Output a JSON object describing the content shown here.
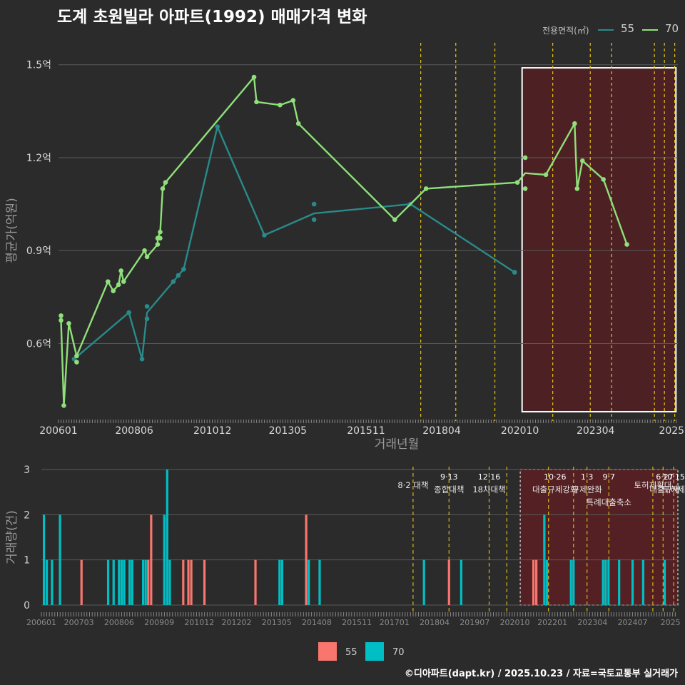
{
  "title": "도계 초원빌라 아파트(1992) 매매가격 변화",
  "footer": "©디아파트(dapt.kr) / 2025.10.23 / 자료=국토교통부 실거래가",
  "colors": {
    "bg": "#2b2b2b",
    "s55_line": "#2a8a8a",
    "s70_line": "#8fe07a",
    "bar55": "#f8766d",
    "bar70": "#00bfc4",
    "policy": "#e6c619",
    "highlight": "#5a1f22"
  },
  "legend_top": {
    "title": "전용면적(㎡)",
    "items": [
      {
        "label": "55",
        "color": "#2a8a8a"
      },
      {
        "label": "70",
        "color": "#8fe07a"
      }
    ]
  },
  "legend_bottom": {
    "items": [
      {
        "label": "55",
        "color": "#f8766d"
      },
      {
        "label": "70",
        "color": "#00bfc4"
      }
    ]
  },
  "chart_data": [
    {
      "type": "line",
      "title": "도계 초원빌라 아파트(1992) 매매가격 변화",
      "xlabel": "거래년월",
      "ylabel": "평균가(억원)",
      "xlim": [
        2006.0,
        2025.8
      ],
      "ylim": [
        0.35,
        1.58
      ],
      "y_ticks": [
        {
          "v": 0.6,
          "label": "0.6억"
        },
        {
          "v": 0.9,
          "label": "0.9억"
        },
        {
          "v": 1.2,
          "label": "1.2억"
        },
        {
          "v": 1.5,
          "label": "1.5억"
        }
      ],
      "x_ticks": [
        {
          "v": 2006.0,
          "label": "200601"
        },
        {
          "v": 2008.42,
          "label": "200806"
        },
        {
          "v": 2010.92,
          "label": "201012"
        },
        {
          "v": 2013.33,
          "label": "201305"
        },
        {
          "v": 2015.83,
          "label": "201511"
        },
        {
          "v": 2018.25,
          "label": "201804"
        },
        {
          "v": 2020.75,
          "label": "202010"
        },
        {
          "v": 2023.17,
          "label": "202304"
        },
        {
          "v": 2025.6,
          "label": "2025"
        }
      ],
      "highlight_range": [
        2020.82,
        2025.83
      ],
      "policy_lines": [
        2017.58,
        2018.7,
        2019.95,
        2021.8,
        2023.0,
        2023.68,
        2025.05,
        2025.37,
        2025.7
      ],
      "series": [
        {
          "name": "55",
          "line": [
            [
              2006.5,
              0.55
            ],
            [
              2008.25,
              0.7
            ],
            [
              2008.67,
              0.55
            ],
            [
              2008.83,
              0.7
            ],
            [
              2009.67,
              0.8
            ],
            [
              2009.83,
              0.82
            ],
            [
              2010.0,
              0.84
            ],
            [
              2011.08,
              1.3
            ],
            [
              2012.58,
              0.95
            ],
            [
              2014.17,
              1.02
            ],
            [
              2017.25,
              1.05
            ],
            [
              2020.58,
              0.83
            ]
          ],
          "points": [
            [
              2006.5,
              0.55
            ],
            [
              2008.25,
              0.7
            ],
            [
              2008.67,
              0.55
            ],
            [
              2008.83,
              0.72
            ],
            [
              2008.83,
              0.68
            ],
            [
              2009.67,
              0.8
            ],
            [
              2009.83,
              0.82
            ],
            [
              2010.0,
              0.84
            ],
            [
              2011.08,
              1.3
            ],
            [
              2012.58,
              0.95
            ],
            [
              2014.17,
              1.05
            ],
            [
              2014.17,
              1.0
            ],
            [
              2017.25,
              1.05
            ],
            [
              2020.58,
              0.83
            ]
          ]
        },
        {
          "name": "70",
          "line": [
            [
              2006.08,
              0.69
            ],
            [
              2006.08,
              0.675
            ],
            [
              2006.17,
              0.4
            ],
            [
              2006.33,
              0.665
            ],
            [
              2006.58,
              0.56
            ],
            [
              2007.58,
              0.8
            ],
            [
              2007.75,
              0.77
            ],
            [
              2007.92,
              0.79
            ],
            [
              2008.0,
              0.835
            ],
            [
              2008.08,
              0.8
            ],
            [
              2008.75,
              0.9
            ],
            [
              2008.83,
              0.88
            ],
            [
              2009.17,
              0.92
            ],
            [
              2009.17,
              0.94
            ],
            [
              2009.25,
              0.96
            ],
            [
              2009.33,
              1.1
            ],
            [
              2009.42,
              1.12
            ],
            [
              2012.25,
              1.46
            ],
            [
              2012.33,
              1.38
            ],
            [
              2013.08,
              1.37
            ],
            [
              2013.5,
              1.385
            ],
            [
              2013.67,
              1.31
            ],
            [
              2016.75,
              1.0
            ],
            [
              2017.25,
              1.05
            ],
            [
              2017.75,
              1.1
            ],
            [
              2020.67,
              1.12
            ],
            [
              2020.92,
              1.15
            ],
            [
              2021.58,
              1.145
            ],
            [
              2022.5,
              1.31
            ],
            [
              2022.58,
              1.1
            ],
            [
              2022.75,
              1.19
            ],
            [
              2023.42,
              1.13
            ],
            [
              2024.17,
              0.92
            ]
          ],
          "points": [
            [
              2006.08,
              0.69
            ],
            [
              2006.08,
              0.675
            ],
            [
              2006.17,
              0.4
            ],
            [
              2006.33,
              0.665
            ],
            [
              2006.58,
              0.56
            ],
            [
              2006.58,
              0.54
            ],
            [
              2007.58,
              0.8
            ],
            [
              2007.75,
              0.77
            ],
            [
              2007.92,
              0.79
            ],
            [
              2008.0,
              0.835
            ],
            [
              2008.08,
              0.8
            ],
            [
              2008.75,
              0.9
            ],
            [
              2008.83,
              0.88
            ],
            [
              2009.17,
              0.92
            ],
            [
              2009.17,
              0.94
            ],
            [
              2009.25,
              0.96
            ],
            [
              2009.25,
              0.94
            ],
            [
              2009.33,
              1.1
            ],
            [
              2009.42,
              1.12
            ],
            [
              2012.25,
              1.46
            ],
            [
              2012.33,
              1.38
            ],
            [
              2013.08,
              1.37
            ],
            [
              2013.5,
              1.385
            ],
            [
              2013.67,
              1.31
            ],
            [
              2016.75,
              1.0
            ],
            [
              2017.75,
              1.1
            ],
            [
              2020.67,
              1.12
            ],
            [
              2020.92,
              1.2
            ],
            [
              2020.92,
              1.1
            ],
            [
              2021.58,
              1.145
            ],
            [
              2022.5,
              1.31
            ],
            [
              2022.58,
              1.1
            ],
            [
              2022.75,
              1.19
            ],
            [
              2023.42,
              1.13
            ],
            [
              2024.17,
              0.92
            ]
          ]
        }
      ]
    },
    {
      "type": "bar",
      "ylabel": "거래량(건)",
      "xlim": [
        2006.0,
        2025.83
      ],
      "ylim": [
        0,
        3
      ],
      "y_ticks": [
        0,
        1,
        2,
        3
      ],
      "x_ticks": [
        {
          "v": 2006.0,
          "label": "200601"
        },
        {
          "v": 2007.17,
          "label": "200703"
        },
        {
          "v": 2008.42,
          "label": "200806"
        },
        {
          "v": 2009.67,
          "label": "200909"
        },
        {
          "v": 2010.92,
          "label": "201012"
        },
        {
          "v": 2012.08,
          "label": "201202"
        },
        {
          "v": 2013.33,
          "label": "201305"
        },
        {
          "v": 2014.58,
          "label": "201408"
        },
        {
          "v": 2015.83,
          "label": "201511"
        },
        {
          "v": 2017.0,
          "label": "201701"
        },
        {
          "v": 2018.25,
          "label": "201804"
        },
        {
          "v": 2019.5,
          "label": "201907"
        },
        {
          "v": 2020.75,
          "label": "202010"
        },
        {
          "v": 2021.92,
          "label": "202201"
        },
        {
          "v": 2023.17,
          "label": "202304"
        },
        {
          "v": 2024.42,
          "label": "202407"
        },
        {
          "v": 2025.6,
          "label": "2025"
        }
      ],
      "highlight_range": [
        2020.92,
        2025.83
      ],
      "policy_lines": [
        2017.58,
        2018.7,
        2019.95,
        2020.5,
        2021.8,
        2022.58,
        2023.0,
        2023.68,
        2025.05,
        2025.37,
        2025.7
      ],
      "policy_labels": [
        {
          "v": 2017.58,
          "date": "",
          "text": "8·2 대책"
        },
        {
          "v": 2018.7,
          "date": "9·13",
          "text": "종합대책"
        },
        {
          "v": 2019.95,
          "date": "12·16",
          "text": "18차대책"
        },
        {
          "v": 2022.0,
          "date": "10·26",
          "text": "대출규제강화"
        },
        {
          "v": 2023.0,
          "date": "1·3",
          "text": "규제완화"
        },
        {
          "v": 2023.68,
          "date": "9·7",
          "text": "특례대출축소"
        },
        {
          "v": 2025.05,
          "date": "",
          "text": "토허제확대"
        },
        {
          "v": 2025.42,
          "date": "6·27",
          "text": "대출규제"
        },
        {
          "v": 2025.7,
          "date": "10·15",
          "text": "토허제"
        }
      ],
      "series": [
        {
          "name": "55",
          "bars": [
            [
              2007.25,
              1
            ],
            [
              2009.33,
              1
            ],
            [
              2009.42,
              2
            ],
            [
              2010.42,
              1
            ],
            [
              2010.58,
              1
            ],
            [
              2010.67,
              1
            ],
            [
              2011.08,
              1
            ],
            [
              2012.67,
              1
            ],
            [
              2014.25,
              2
            ],
            [
              2018.7,
              1
            ],
            [
              2021.33,
              1
            ],
            [
              2021.42,
              1
            ]
          ]
        },
        {
          "name": "70",
          "bars": [
            [
              2006.08,
              2
            ],
            [
              2006.17,
              1
            ],
            [
              2006.33,
              1
            ],
            [
              2006.58,
              2
            ],
            [
              2008.08,
              1
            ],
            [
              2008.25,
              1
            ],
            [
              2008.42,
              1
            ],
            [
              2008.5,
              1
            ],
            [
              2008.58,
              1
            ],
            [
              2008.75,
              1
            ],
            [
              2008.83,
              1
            ],
            [
              2009.17,
              1
            ],
            [
              2009.25,
              1
            ],
            [
              2009.83,
              2
            ],
            [
              2009.92,
              3
            ],
            [
              2010.0,
              1
            ],
            [
              2013.42,
              1
            ],
            [
              2013.5,
              1
            ],
            [
              2014.33,
              1
            ],
            [
              2014.67,
              1
            ],
            [
              2017.92,
              1
            ],
            [
              2019.08,
              1
            ],
            [
              2021.67,
              2
            ],
            [
              2021.75,
              1
            ],
            [
              2022.5,
              1
            ],
            [
              2022.58,
              1
            ],
            [
              2023.5,
              1
            ],
            [
              2023.58,
              1
            ],
            [
              2023.67,
              1
            ],
            [
              2024.0,
              1
            ],
            [
              2024.42,
              1
            ],
            [
              2024.75,
              1
            ],
            [
              2025.42,
              1
            ]
          ]
        }
      ]
    }
  ]
}
